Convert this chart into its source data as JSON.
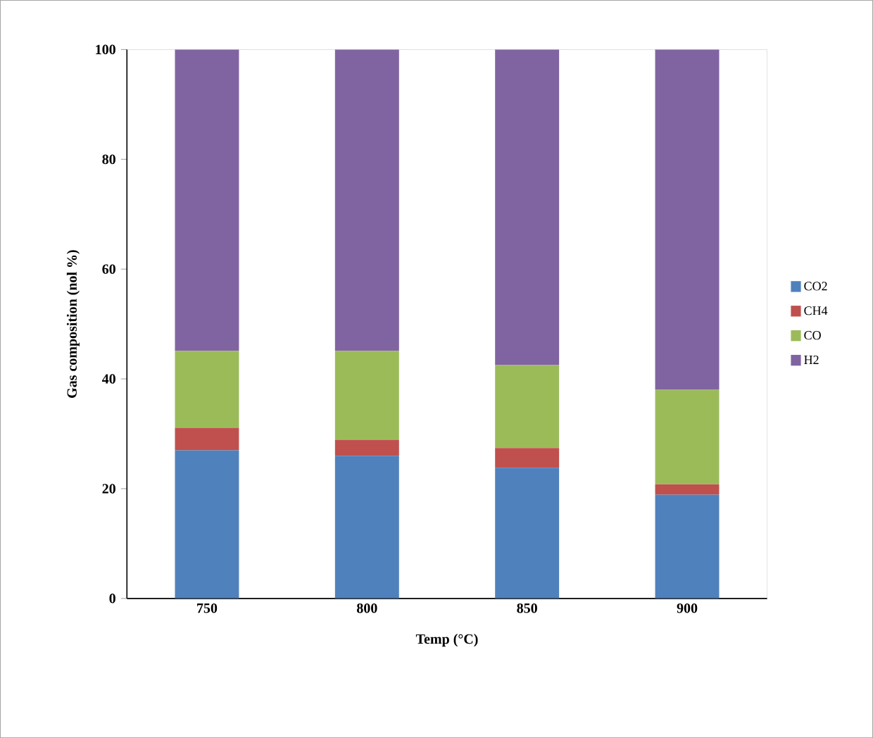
{
  "chart_data": {
    "type": "bar",
    "stacked": true,
    "xlabel": "Temp (°C)",
    "ylabel": "Gas composition (nol %)",
    "categories": [
      "750",
      "800",
      "850",
      "900"
    ],
    "series": [
      {
        "name": "CO2",
        "color": "#4f81bd",
        "values": [
          27,
          26,
          23.8,
          18.9
        ]
      },
      {
        "name": "CH4",
        "color": "#c0504d",
        "values": [
          4.1,
          2.9,
          3.6,
          1.9
        ]
      },
      {
        "name": "CO",
        "color": "#9bbb59",
        "values": [
          14,
          16.2,
          15.1,
          17.2
        ]
      },
      {
        "name": "H2",
        "color": "#8064a2",
        "values": [
          54.9,
          54.9,
          57.5,
          62
        ]
      }
    ],
    "ylim": [
      0,
      100
    ],
    "yticks": [
      0,
      20,
      40,
      60,
      80,
      100
    ],
    "legend": "right"
  }
}
